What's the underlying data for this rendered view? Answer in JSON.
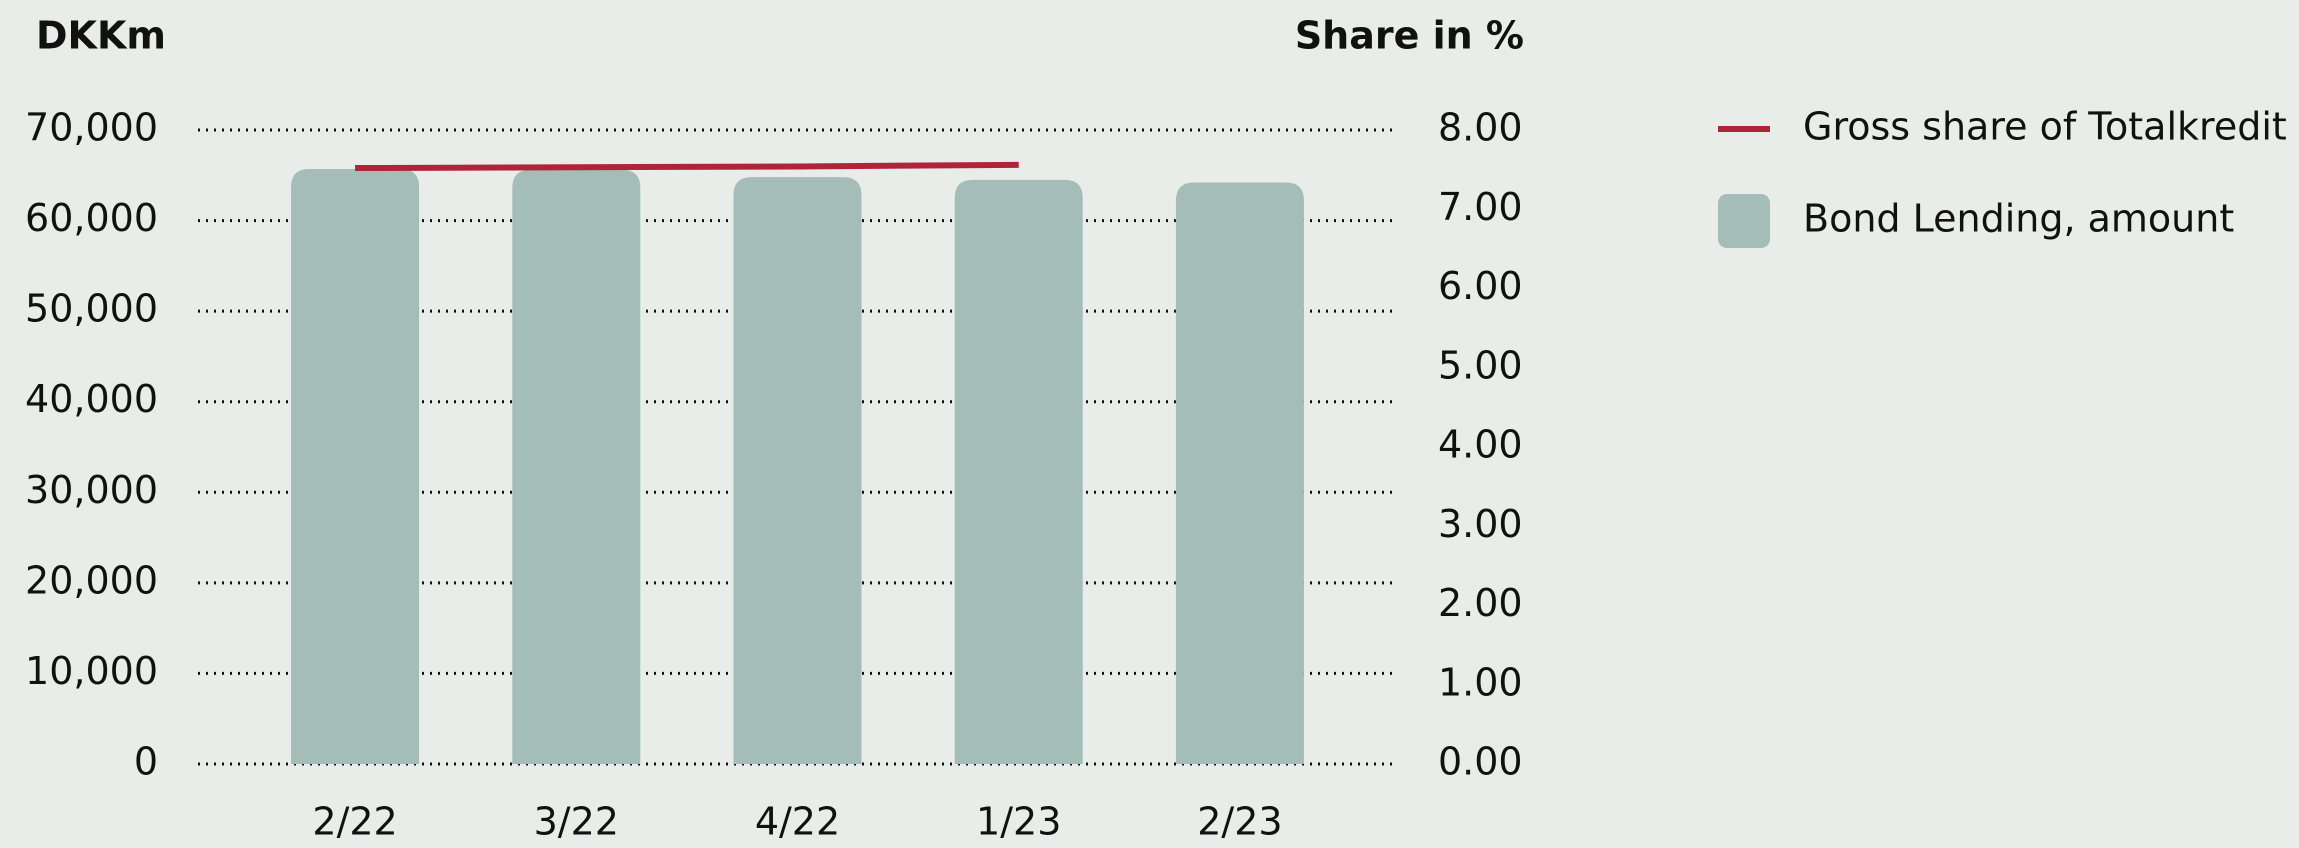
{
  "chart_data": {
    "type": "bar_line",
    "y_axis_label": "DKKm",
    "y2_axis_label": "Share in %",
    "categories": [
      "2/22",
      "3/22",
      "4/22",
      "1/23",
      "2/23"
    ],
    "series": [
      {
        "name": "Bond Lending, amount",
        "type": "bar",
        "color": "#a5bdb8",
        "values": [
          65700,
          65600,
          64800,
          64500,
          64200
        ]
      },
      {
        "name": "Gross share of Totalkredit",
        "type": "line",
        "axis": "y2",
        "color": "#b0243a",
        "values": [
          7.52,
          7.53,
          7.54,
          7.56,
          null
        ]
      }
    ],
    "ylim": [
      0,
      70000
    ],
    "yticks": [
      {
        "value": 0,
        "label": "0"
      },
      {
        "value": 10000,
        "label": "10,000"
      },
      {
        "value": 20000,
        "label": "20,000"
      },
      {
        "value": 30000,
        "label": "30,000"
      },
      {
        "value": 40000,
        "label": "40,000"
      },
      {
        "value": 50000,
        "label": "50,000"
      },
      {
        "value": 60000,
        "label": "60,000"
      },
      {
        "value": 70000,
        "label": "70,000"
      }
    ],
    "y2lim": [
      0,
      8
    ],
    "y2ticks": [
      {
        "value": 0,
        "label": "0.00"
      },
      {
        "value": 1,
        "label": "1.00"
      },
      {
        "value": 2,
        "label": "2.00"
      },
      {
        "value": 3,
        "label": "3.00"
      },
      {
        "value": 4,
        "label": "4.00"
      },
      {
        "value": 5,
        "label": "5.00"
      },
      {
        "value": 6,
        "label": "6.00"
      },
      {
        "value": 7,
        "label": "7.00"
      },
      {
        "value": 8,
        "label": "8.00"
      }
    ],
    "grid": true
  }
}
